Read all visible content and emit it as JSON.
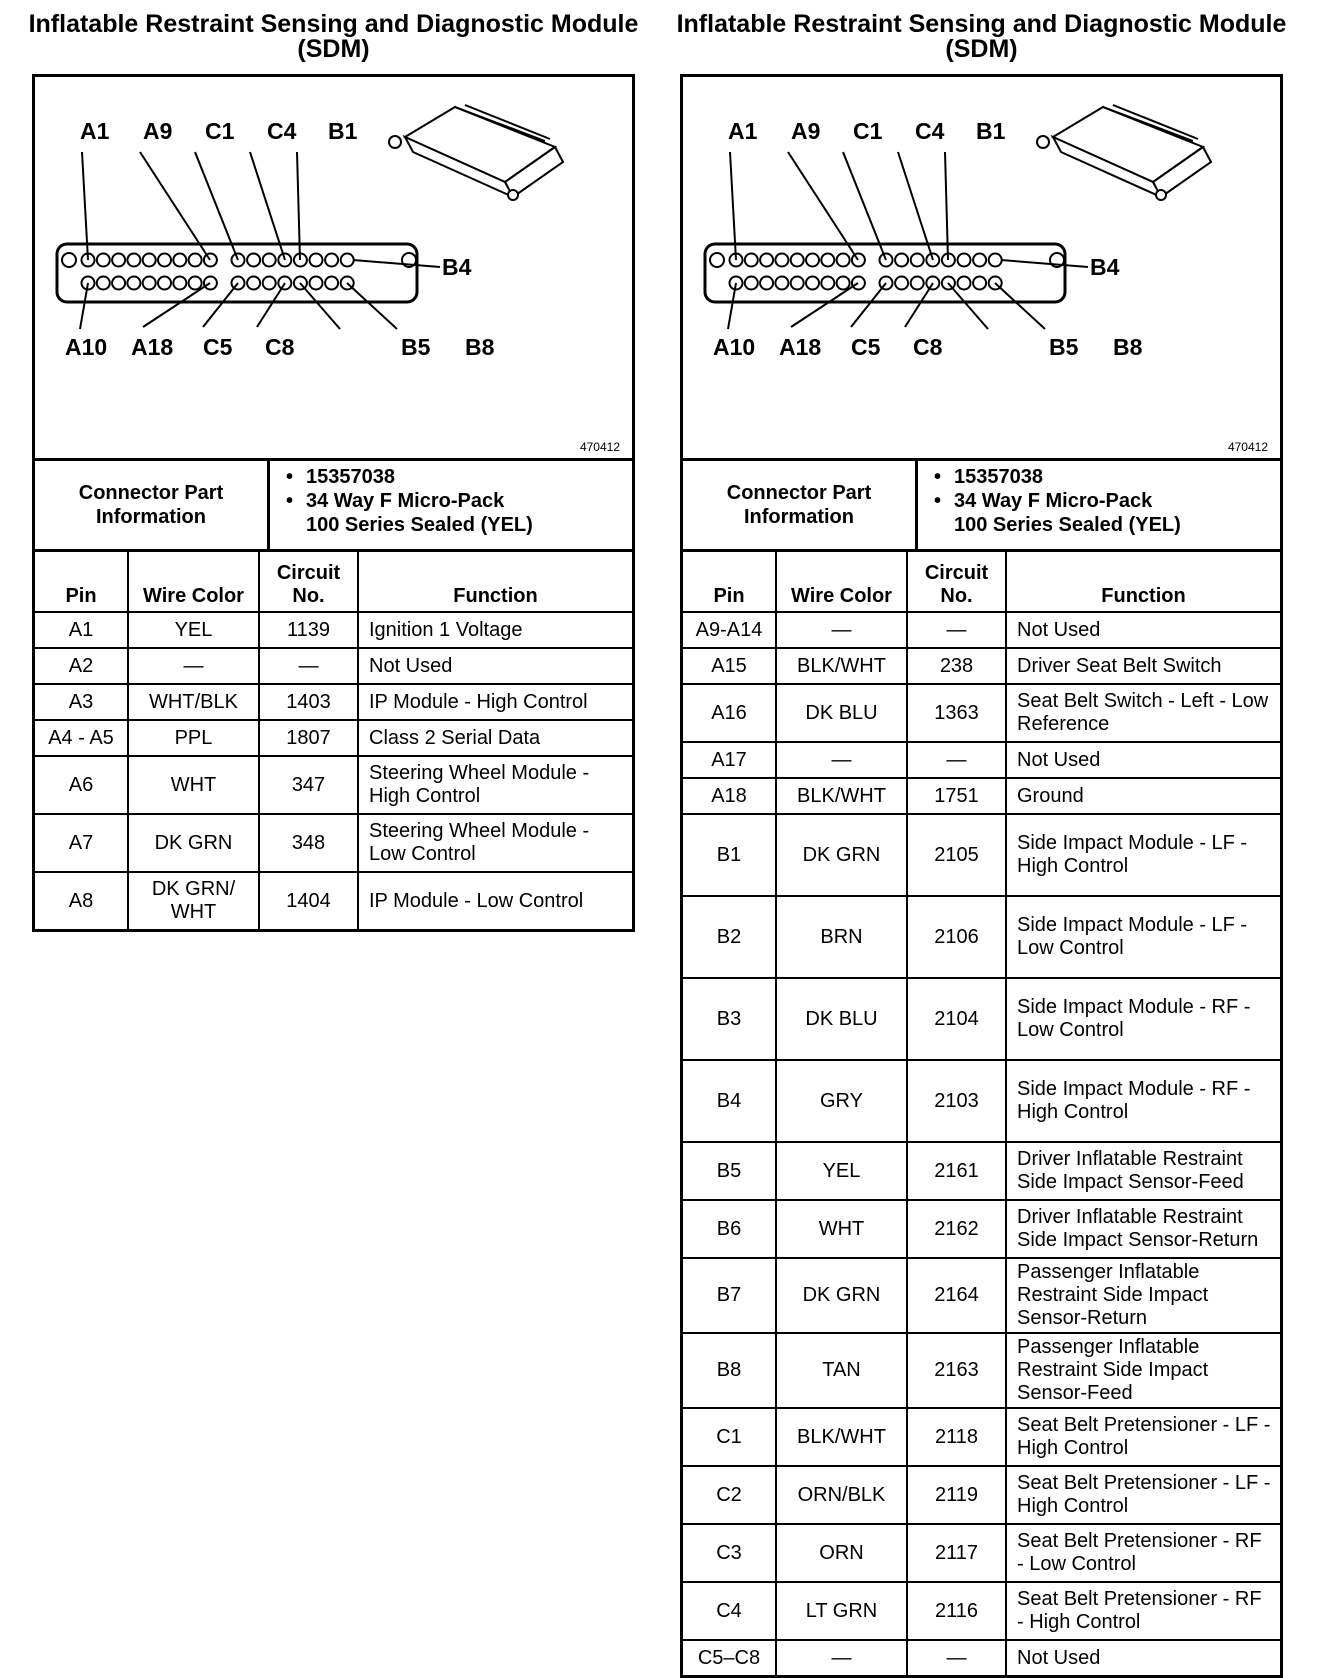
{
  "panels": [
    {
      "title": "Inflatable Restraint Sensing and Diagnostic Module (SDM)",
      "diagram": {
        "top_labels": [
          "A1",
          "A9",
          "C1",
          "C4",
          "B1"
        ],
        "side_label": "B4",
        "bottom_labels": [
          "A10",
          "A18",
          "C5",
          "C8",
          "B5",
          "B8"
        ],
        "figure_number": "470412"
      },
      "connector_info": {
        "label": "Connector Part Information",
        "bullets": [
          "15357038",
          "34 Way F Micro-Pack\n100 Series Sealed (YEL)"
        ]
      },
      "headers": [
        "Pin",
        "Wire Color",
        "Circuit No.",
        "Function"
      ],
      "rows": [
        {
          "pin": "A1",
          "color": "YEL",
          "circuit": "1139",
          "function": "Ignition 1 Voltage"
        },
        {
          "pin": "A2",
          "color": "—",
          "circuit": "—",
          "function": "Not Used"
        },
        {
          "pin": "A3",
          "color": "WHT/BLK",
          "circuit": "1403",
          "function": "IP Module - High Control"
        },
        {
          "pin": "A4 - A5",
          "color": "PPL",
          "circuit": "1807",
          "function": "Class 2 Serial Data"
        },
        {
          "pin": "A6",
          "color": "WHT",
          "circuit": "347",
          "function": "Steering Wheel Module - High Control"
        },
        {
          "pin": "A7",
          "color": "DK GRN",
          "circuit": "348",
          "function": "Steering Wheel Module - Low Control"
        },
        {
          "pin": "A8",
          "color": "DK GRN/ WHT",
          "circuit": "1404",
          "function": "IP Module - Low Control"
        }
      ]
    },
    {
      "title": "Inflatable Restraint Sensing and Diagnostic Module (SDM)",
      "diagram": {
        "top_labels": [
          "A1",
          "A9",
          "C1",
          "C4",
          "B1"
        ],
        "side_label": "B4",
        "bottom_labels": [
          "A10",
          "A18",
          "C5",
          "C8",
          "B5",
          "B8"
        ],
        "figure_number": "470412"
      },
      "connector_info": {
        "label": "Connector Part Information",
        "bullets": [
          "15357038",
          "34 Way F Micro-Pack\n100 Series Sealed (YEL)"
        ]
      },
      "headers": [
        "Pin",
        "Wire Color",
        "Circuit No.",
        "Function"
      ],
      "rows": [
        {
          "pin": "A9-A14",
          "color": "—",
          "circuit": "—",
          "function": "Not Used"
        },
        {
          "pin": "A15",
          "color": "BLK/WHT",
          "circuit": "238",
          "function": "Driver Seat Belt Switch"
        },
        {
          "pin": "A16",
          "color": "DK BLU",
          "circuit": "1363",
          "function": "Seat Belt Switch - Left - Low Reference"
        },
        {
          "pin": "A17",
          "color": "—",
          "circuit": "—",
          "function": "Not Used"
        },
        {
          "pin": "A18",
          "color": "BLK/WHT",
          "circuit": "1751",
          "function": "Ground"
        },
        {
          "pin": "B1",
          "color": "DK GRN",
          "circuit": "2105",
          "function": "Side Impact Module - LF - High Control"
        },
        {
          "pin": "B2",
          "color": "BRN",
          "circuit": "2106",
          "function": "Side Impact Module - LF - Low Control"
        },
        {
          "pin": "B3",
          "color": "DK BLU",
          "circuit": "2104",
          "function": "Side Impact Module - RF - Low Control"
        },
        {
          "pin": "B4",
          "color": "GRY",
          "circuit": "2103",
          "function": "Side Impact Module - RF - High Control"
        },
        {
          "pin": "B5",
          "color": "YEL",
          "circuit": "2161",
          "function": "Driver Inflatable Restraint Side Impact Sensor-Feed"
        },
        {
          "pin": "B6",
          "color": "WHT",
          "circuit": "2162",
          "function": "Driver Inflatable Restraint Side Impact Sensor-Return"
        },
        {
          "pin": "B7",
          "color": "DK GRN",
          "circuit": "2164",
          "function": "Passenger Inflatable Restraint Side Impact Sensor-Return"
        },
        {
          "pin": "B8",
          "color": "TAN",
          "circuit": "2163",
          "function": "Passenger Inflatable Restraint Side Impact Sensor-Feed"
        },
        {
          "pin": "C1",
          "color": "BLK/WHT",
          "circuit": "2118",
          "function": "Seat Belt Pretensioner - LF - High Control"
        },
        {
          "pin": "C2",
          "color": "ORN/BLK",
          "circuit": "2119",
          "function": "Seat Belt Pretensioner - LF - High Control"
        },
        {
          "pin": "C3",
          "color": "ORN",
          "circuit": "2117",
          "function": "Seat Belt Pretensioner - RF - Low Control"
        },
        {
          "pin": "C4",
          "color": "LT GRN",
          "circuit": "2116",
          "function": "Seat Belt Pretensioner - RF - High Control"
        },
        {
          "pin": "C5–C8",
          "color": "—",
          "circuit": "—",
          "function": "Not Used"
        }
      ]
    }
  ]
}
